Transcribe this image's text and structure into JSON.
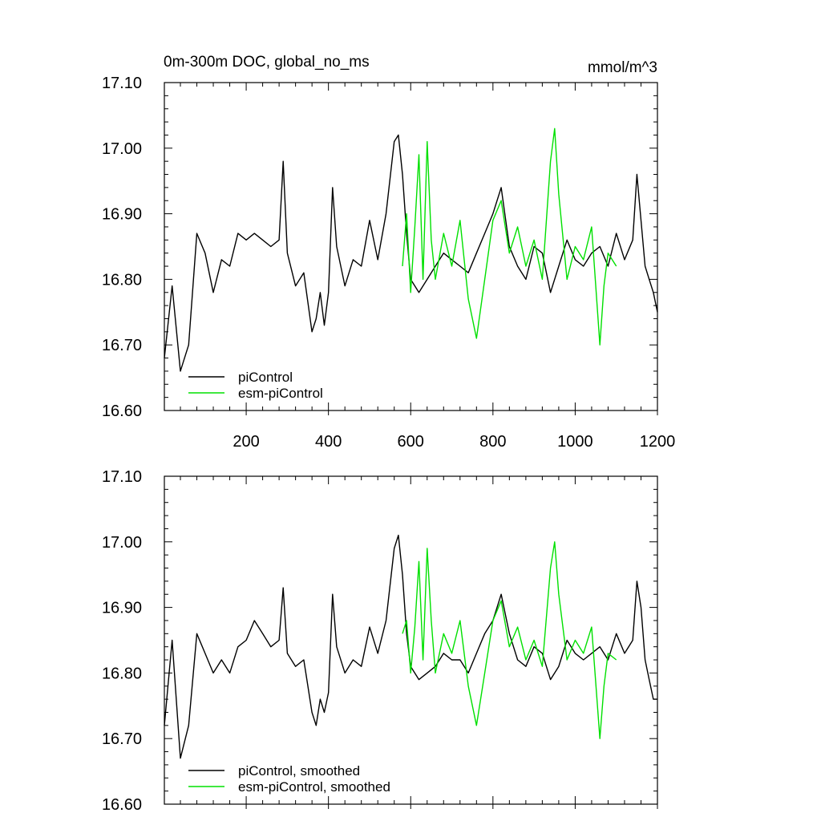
{
  "figure": {
    "title_left": "0m-300m DOC, global_no_ms",
    "title_right": "mmol/m^3"
  },
  "colors": {
    "piControl": "#000000",
    "esm_piControl": "#00e000",
    "axis": "#000000"
  },
  "chart_data": [
    {
      "type": "line",
      "panel": "top",
      "title": "0m-300m DOC, global_no_ms",
      "units": "mmol/m^3",
      "xlim": [
        1,
        1200
      ],
      "ylim": [
        16.6,
        17.1
      ],
      "x_ticks": [
        200,
        400,
        600,
        800,
        1000,
        1200
      ],
      "x_tick_labels": [
        "200",
        "400",
        "600",
        "800",
        "1000",
        "1200"
      ],
      "y_ticks": [
        16.6,
        16.7,
        16.8,
        16.9,
        17.0,
        17.1
      ],
      "y_tick_labels": [
        "16.60",
        "16.70",
        "16.80",
        "16.90",
        "17.00",
        "17.10"
      ],
      "legend": [
        "piControl",
        "esm-piControl"
      ],
      "legend_position": "bottom-left",
      "series": [
        {
          "name": "piControl",
          "x": [
            1,
            20,
            40,
            60,
            80,
            100,
            120,
            140,
            160,
            180,
            200,
            220,
            240,
            260,
            280,
            290,
            300,
            320,
            340,
            360,
            370,
            380,
            390,
            400,
            410,
            420,
            440,
            460,
            480,
            500,
            520,
            540,
            560,
            570,
            580,
            590,
            600,
            620,
            640,
            660,
            680,
            700,
            720,
            740,
            760,
            780,
            800,
            820,
            840,
            860,
            880,
            900,
            920,
            940,
            960,
            980,
            1000,
            1020,
            1040,
            1060,
            1080,
            1100,
            1120,
            1140,
            1150,
            1160,
            1170,
            1180,
            1190,
            1200
          ],
          "values": [
            16.68,
            16.79,
            16.66,
            16.7,
            16.87,
            16.84,
            16.78,
            16.83,
            16.82,
            16.87,
            16.86,
            16.87,
            16.86,
            16.85,
            16.86,
            16.98,
            16.84,
            16.79,
            16.81,
            16.72,
            16.74,
            16.78,
            16.73,
            16.78,
            16.94,
            16.85,
            16.79,
            16.83,
            16.82,
            16.89,
            16.83,
            16.9,
            17.01,
            17.02,
            16.96,
            16.87,
            16.8,
            16.78,
            16.8,
            16.82,
            16.84,
            16.83,
            16.82,
            16.81,
            16.84,
            16.87,
            16.9,
            16.94,
            16.85,
            16.82,
            16.8,
            16.85,
            16.84,
            16.78,
            16.82,
            16.86,
            16.83,
            16.82,
            16.84,
            16.85,
            16.82,
            16.87,
            16.83,
            16.86,
            16.96,
            16.89,
            16.82,
            16.8,
            16.78,
            16.75
          ]
        },
        {
          "name": "esm-piControl",
          "x": [
            580,
            590,
            600,
            610,
            620,
            630,
            640,
            650,
            660,
            680,
            700,
            720,
            740,
            760,
            780,
            800,
            820,
            840,
            860,
            880,
            900,
            920,
            940,
            950,
            960,
            980,
            1000,
            1020,
            1040,
            1060,
            1070,
            1080,
            1100
          ],
          "values": [
            16.82,
            16.9,
            16.78,
            16.88,
            16.99,
            16.8,
            17.01,
            16.86,
            16.8,
            16.87,
            16.82,
            16.89,
            16.77,
            16.71,
            16.8,
            16.89,
            16.92,
            16.84,
            16.88,
            16.82,
            16.86,
            16.8,
            16.98,
            17.03,
            16.93,
            16.8,
            16.85,
            16.83,
            16.88,
            16.7,
            16.79,
            16.84,
            16.82
          ]
        }
      ]
    },
    {
      "type": "line",
      "panel": "bottom",
      "xlim": [
        1,
        1200
      ],
      "ylim": [
        16.6,
        17.1
      ],
      "y_ticks": [
        16.6,
        16.7,
        16.8,
        16.9,
        17.0,
        17.1
      ],
      "y_tick_labels": [
        "16.60",
        "16.70",
        "16.80",
        "16.90",
        "17.00",
        "17.10"
      ],
      "legend": [
        "piControl, smoothed",
        "esm-piControl, smoothed"
      ],
      "legend_position": "bottom-left",
      "series": [
        {
          "name": "piControl, smoothed",
          "x": [
            1,
            20,
            40,
            60,
            80,
            100,
            120,
            140,
            160,
            180,
            200,
            220,
            240,
            260,
            280,
            290,
            300,
            320,
            340,
            360,
            370,
            380,
            390,
            400,
            410,
            420,
            440,
            460,
            480,
            500,
            520,
            540,
            560,
            570,
            580,
            590,
            600,
            620,
            640,
            660,
            680,
            700,
            720,
            740,
            760,
            780,
            800,
            820,
            840,
            860,
            880,
            900,
            920,
            940,
            960,
            980,
            1000,
            1020,
            1040,
            1060,
            1080,
            1100,
            1120,
            1140,
            1150,
            1160,
            1170,
            1180,
            1190,
            1200
          ],
          "values": [
            16.72,
            16.85,
            16.67,
            16.72,
            16.86,
            16.83,
            16.8,
            16.82,
            16.8,
            16.84,
            16.85,
            16.88,
            16.86,
            16.84,
            16.85,
            16.93,
            16.83,
            16.81,
            16.82,
            16.74,
            16.72,
            16.76,
            16.74,
            16.77,
            16.92,
            16.84,
            16.8,
            16.82,
            16.81,
            16.87,
            16.83,
            16.88,
            16.99,
            17.01,
            16.95,
            16.86,
            16.81,
            16.79,
            16.8,
            16.81,
            16.83,
            16.82,
            16.82,
            16.8,
            16.83,
            16.86,
            16.88,
            16.92,
            16.86,
            16.82,
            16.81,
            16.84,
            16.83,
            16.79,
            16.81,
            16.85,
            16.83,
            16.82,
            16.83,
            16.84,
            16.82,
            16.86,
            16.83,
            16.85,
            16.94,
            16.9,
            16.82,
            16.79,
            16.76,
            16.76
          ]
        },
        {
          "name": "esm-piControl, smoothed",
          "x": [
            580,
            590,
            600,
            610,
            620,
            630,
            640,
            650,
            660,
            680,
            700,
            720,
            740,
            760,
            780,
            800,
            820,
            840,
            860,
            880,
            900,
            920,
            940,
            950,
            960,
            980,
            1000,
            1020,
            1040,
            1060,
            1070,
            1080,
            1100
          ],
          "values": [
            16.86,
            16.88,
            16.8,
            16.87,
            16.97,
            16.82,
            16.99,
            16.88,
            16.8,
            16.86,
            16.83,
            16.88,
            16.78,
            16.72,
            16.8,
            16.88,
            16.91,
            16.84,
            16.87,
            16.82,
            16.85,
            16.81,
            16.96,
            17.0,
            16.92,
            16.82,
            16.85,
            16.83,
            16.87,
            16.7,
            16.78,
            16.83,
            16.82
          ]
        }
      ]
    }
  ]
}
